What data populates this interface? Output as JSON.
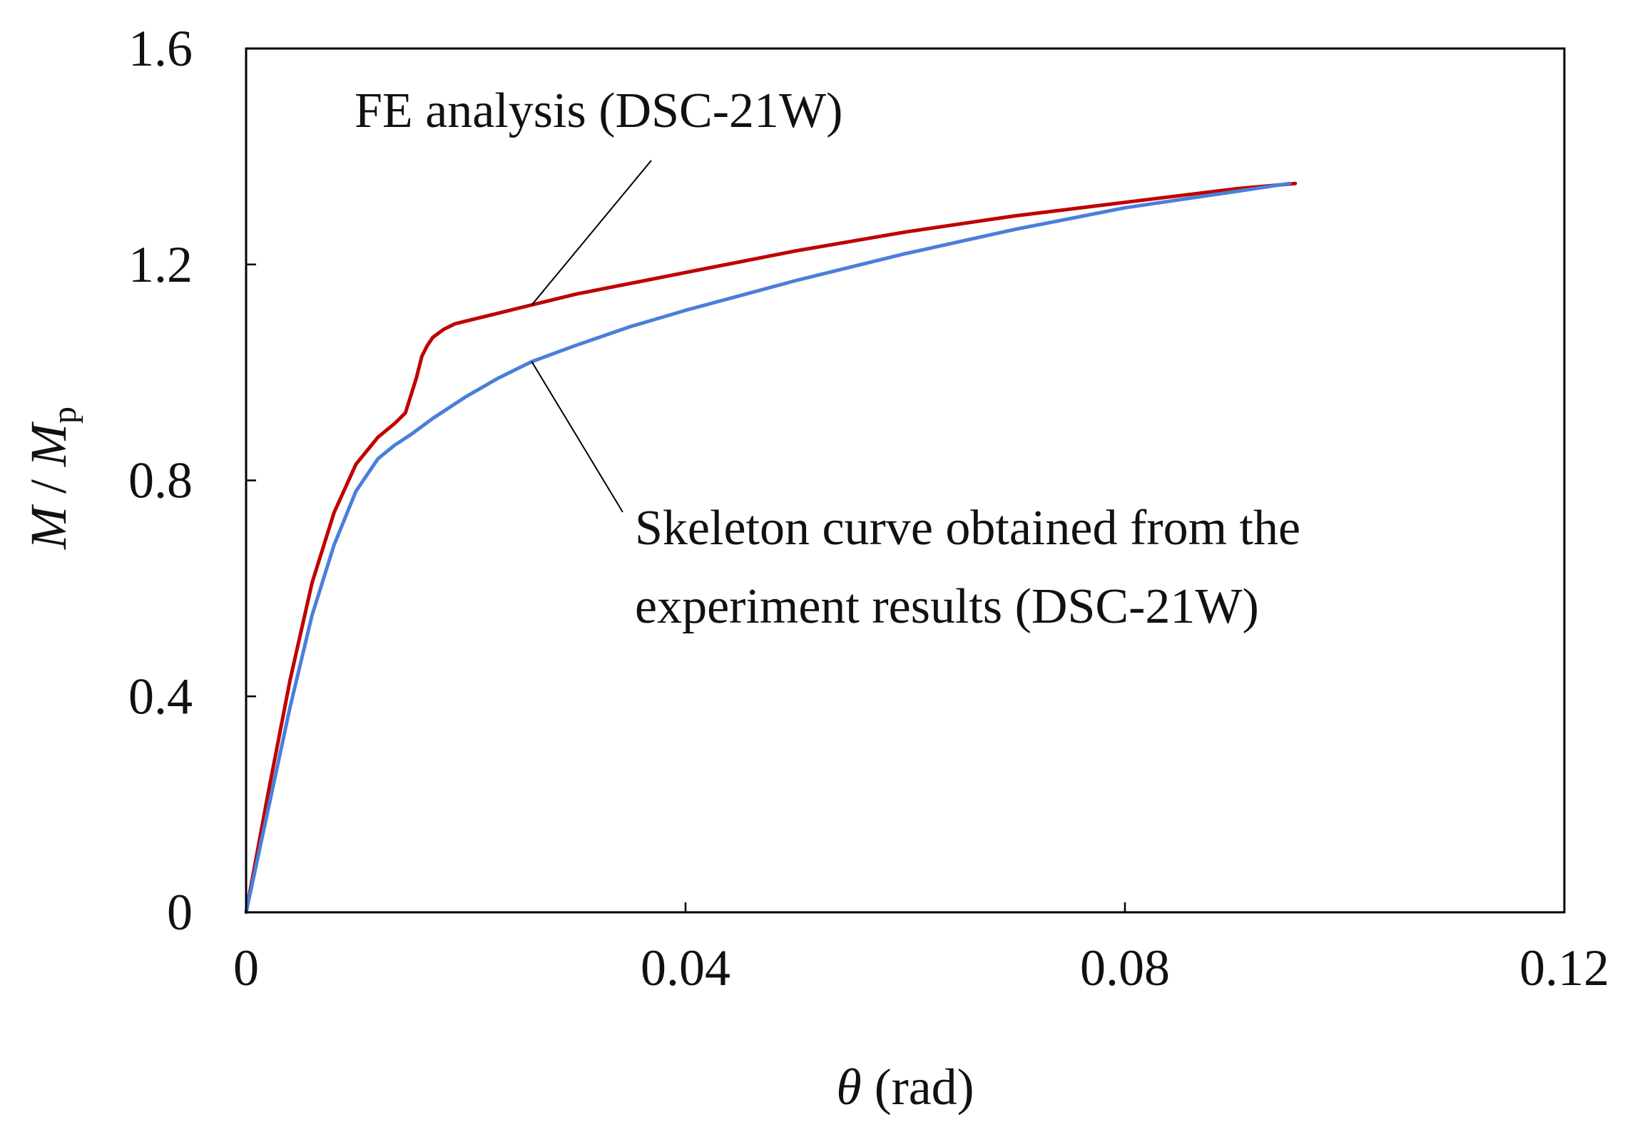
{
  "chart_data": {
    "type": "line",
    "title": "",
    "xlabel": {
      "symbol": "θ",
      "unit": " (rad)"
    },
    "ylabel": {
      "numerator": "M",
      "separator": " / ",
      "denominator": "M",
      "subscript": "p"
    },
    "xlim": [
      0,
      0.12
    ],
    "ylim": [
      0,
      1.6
    ],
    "xticks": [
      0,
      0.04,
      0.08,
      0.12
    ],
    "xtick_labels": [
      "0",
      "0.04",
      "0.08",
      "0.12"
    ],
    "yticks": [
      0,
      0.4,
      0.8,
      1.2,
      1.6
    ],
    "ytick_labels": [
      "0",
      "0.4",
      "0.8",
      "1.2",
      "1.6"
    ],
    "grid": false,
    "series": [
      {
        "name": "FE analysis (DSC-21W)",
        "color": "#c00000",
        "x": [
          0,
          0.002,
          0.004,
          0.006,
          0.008,
          0.01,
          0.012,
          0.0135,
          0.0145,
          0.0155,
          0.016,
          0.0165,
          0.017,
          0.018,
          0.019,
          0.02,
          0.022,
          0.026,
          0.03,
          0.04,
          0.05,
          0.06,
          0.07,
          0.08,
          0.09,
          0.0955
        ],
        "y": [
          0,
          0.22,
          0.43,
          0.61,
          0.74,
          0.83,
          0.88,
          0.905,
          0.925,
          0.99,
          1.03,
          1.05,
          1.065,
          1.08,
          1.09,
          1.095,
          1.105,
          1.125,
          1.145,
          1.185,
          1.225,
          1.26,
          1.29,
          1.315,
          1.34,
          1.35
        ]
      },
      {
        "name": "Skeleton curve obtained from the experiment results (DSC-21W)",
        "color": "#4a7fdb",
        "x": [
          0,
          0.002,
          0.004,
          0.006,
          0.008,
          0.01,
          0.012,
          0.0135,
          0.015,
          0.017,
          0.02,
          0.023,
          0.026,
          0.03,
          0.035,
          0.04,
          0.05,
          0.06,
          0.07,
          0.08,
          0.09,
          0.095
        ],
        "y": [
          0,
          0.19,
          0.38,
          0.55,
          0.68,
          0.78,
          0.84,
          0.865,
          0.885,
          0.915,
          0.955,
          0.99,
          1.02,
          1.05,
          1.085,
          1.115,
          1.17,
          1.22,
          1.265,
          1.305,
          1.335,
          1.35
        ]
      }
    ],
    "annotations": [
      {
        "lines": [
          "FE analysis (DSC-21W)"
        ],
        "points_to": {
          "x": 0.026,
          "y": 1.125
        }
      },
      {
        "lines": [
          "Skeleton curve obtained from the",
          "experiment results (DSC-21W)"
        ],
        "points_to": {
          "x": 0.026,
          "y": 1.02
        }
      }
    ]
  }
}
